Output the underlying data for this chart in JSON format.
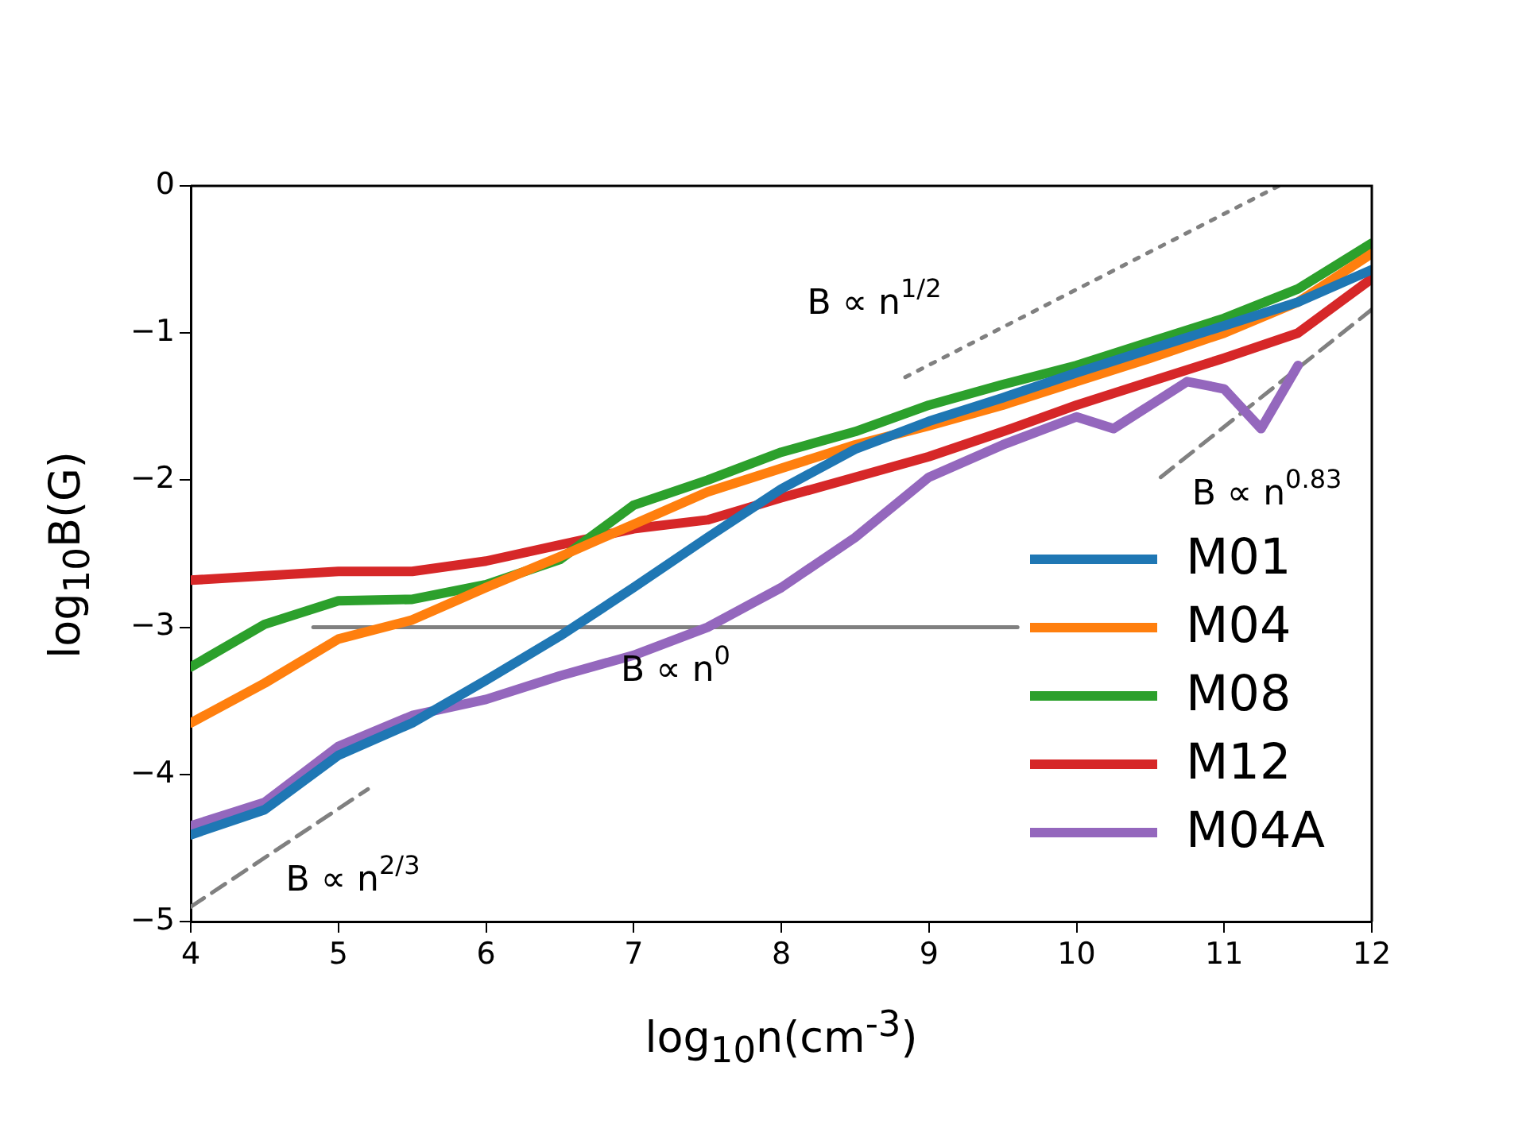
{
  "chart_data": {
    "type": "line",
    "xlabel": "log$_{10}$n(cm$^{-3}$)",
    "ylabel": "log$_{10}$B(G)",
    "x": [
      4,
      4.5,
      5,
      5.5,
      6,
      6.5,
      7,
      7.5,
      8,
      8.5,
      9,
      9.5,
      10,
      10.5,
      11,
      11.5,
      12
    ],
    "xlim": [
      4,
      12
    ],
    "ylim": [
      -5,
      0
    ],
    "xticks": [
      4,
      5,
      6,
      7,
      8,
      9,
      10,
      11,
      12
    ],
    "yticks": [
      -5,
      -4,
      -3,
      -2,
      -1,
      0
    ],
    "grid": false,
    "legend": "bottom right",
    "marker": "none",
    "series": [
      {
        "name": "M01",
        "color": "#1f77b4",
        "values": [
          -4.41,
          -4.24,
          -3.87,
          -3.65,
          -3.36,
          -3.06,
          -2.73,
          -2.39,
          -2.06,
          -1.79,
          -1.6,
          -1.44,
          -1.27,
          -1.11,
          -0.95,
          -0.79,
          -0.57
        ]
      },
      {
        "name": "M04",
        "color": "#ff7f0e",
        "values": [
          -3.65,
          -3.38,
          -3.08,
          -2.95,
          -2.73,
          -2.52,
          -2.3,
          -2.08,
          -1.92,
          -1.76,
          -1.63,
          -1.49,
          -1.33,
          -1.17,
          -1.0,
          -0.79,
          -0.46
        ]
      },
      {
        "name": "M08",
        "color": "#2ca02c",
        "values": [
          -3.27,
          -2.98,
          -2.82,
          -2.81,
          -2.71,
          -2.54,
          -2.17,
          -2.0,
          -1.81,
          -1.67,
          -1.49,
          -1.35,
          -1.22,
          -1.06,
          -0.9,
          -0.7,
          -0.39
        ]
      },
      {
        "name": "M12",
        "color": "#d62728",
        "values": [
          -2.68,
          -2.65,
          -2.62,
          -2.62,
          -2.55,
          -2.44,
          -2.33,
          -2.27,
          -2.12,
          -1.98,
          -1.84,
          -1.67,
          -1.49,
          -1.33,
          -1.17,
          -1.0,
          -0.63
        ]
      },
      {
        "name": "M04A",
        "color": "#9467bd",
        "x": [
          4,
          4.5,
          5,
          5.5,
          6,
          6.5,
          7,
          7.5,
          8,
          8.5,
          9,
          9.5,
          10,
          10.25,
          10.5,
          10.75,
          11,
          11.25,
          11.5
        ],
        "values": [
          -4.35,
          -4.19,
          -3.81,
          -3.6,
          -3.49,
          -3.33,
          -3.19,
          -3.0,
          -2.73,
          -2.39,
          -1.98,
          -1.76,
          -1.57,
          -1.65,
          -1.49,
          -1.33,
          -1.38,
          -1.65,
          -1.22
        ]
      },
      {
        "type": "line",
        "color": "#808080",
        "line_style": "dotted",
        "x": [
          8.84,
          11.37
        ],
        "values": [
          -1.3,
          0
        ]
      },
      {
        "type": "line",
        "color": "#808080",
        "line_style": "solid",
        "x": [
          4.83,
          9.6
        ],
        "values": [
          -3,
          -3
        ]
      },
      {
        "type": "line",
        "color": "#808080",
        "line_style": "dashed",
        "x": [
          4,
          5.2
        ],
        "values": [
          -4.9,
          -4.1
        ]
      },
      {
        "type": "line",
        "color": "#808080",
        "line_style": "dashed",
        "x": [
          10.57,
          12
        ],
        "values": [
          -1.98,
          -0.84
        ]
      }
    ],
    "annotations": [
      "B ∝ n$^{1/2}$",
      "B ∝ n$^{0}$",
      "B ∝ n$^{2/3}$",
      "B ∝ n$^{0.83}$"
    ]
  }
}
